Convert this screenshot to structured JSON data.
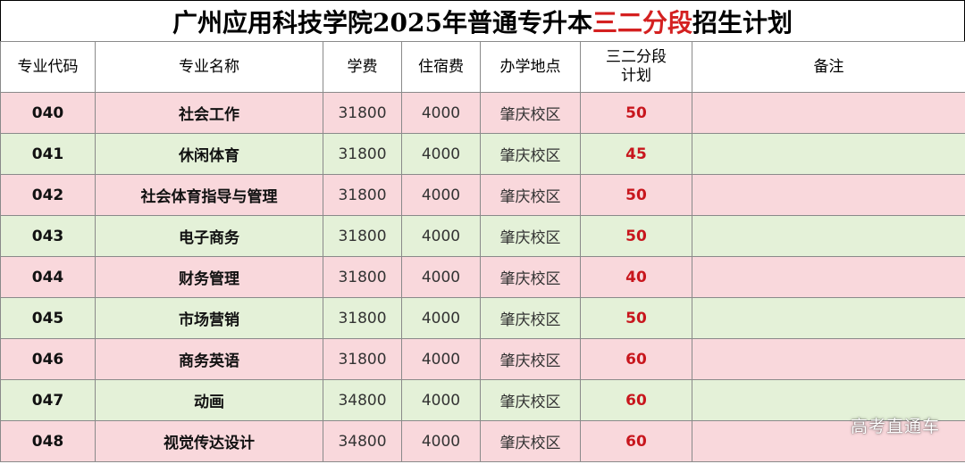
{
  "title": {
    "prefix": "广州应用科技学院2025年普通专升本",
    "highlight": "三二分段",
    "suffix": "招生计划"
  },
  "headers": {
    "code": "专业代码",
    "name": "专业名称",
    "tuition": "学费",
    "dorm": "住宿费",
    "campus": "办学地点",
    "plan_line1": "三二分段",
    "plan_line2": "计划",
    "remark": "备注"
  },
  "rows": [
    {
      "code": "040",
      "name": "社会工作",
      "tuition": "31800",
      "dorm": "4000",
      "campus": "肇庆校区",
      "plan": "50",
      "remark": ""
    },
    {
      "code": "041",
      "name": "休闲体育",
      "tuition": "31800",
      "dorm": "4000",
      "campus": "肇庆校区",
      "plan": "45",
      "remark": ""
    },
    {
      "code": "042",
      "name": "社会体育指导与管理",
      "tuition": "31800",
      "dorm": "4000",
      "campus": "肇庆校区",
      "plan": "50",
      "remark": ""
    },
    {
      "code": "043",
      "name": "电子商务",
      "tuition": "31800",
      "dorm": "4000",
      "campus": "肇庆校区",
      "plan": "50",
      "remark": ""
    },
    {
      "code": "044",
      "name": "财务管理",
      "tuition": "31800",
      "dorm": "4000",
      "campus": "肇庆校区",
      "plan": "40",
      "remark": ""
    },
    {
      "code": "045",
      "name": "市场营销",
      "tuition": "31800",
      "dorm": "4000",
      "campus": "肇庆校区",
      "plan": "50",
      "remark": ""
    },
    {
      "code": "046",
      "name": "商务英语",
      "tuition": "31800",
      "dorm": "4000",
      "campus": "肇庆校区",
      "plan": "60",
      "remark": ""
    },
    {
      "code": "047",
      "name": "动画",
      "tuition": "34800",
      "dorm": "4000",
      "campus": "肇庆校区",
      "plan": "60",
      "remark": ""
    },
    {
      "code": "048",
      "name": "视觉传达设计",
      "tuition": "34800",
      "dorm": "4000",
      "campus": "肇庆校区",
      "plan": "60",
      "remark": ""
    }
  ],
  "colors": {
    "row_pink": "#f9d8dc",
    "row_green": "#e4f1d8",
    "plan_red": "#c8161d",
    "title_highlight": "#d42020"
  },
  "watermark": "高考直通车"
}
